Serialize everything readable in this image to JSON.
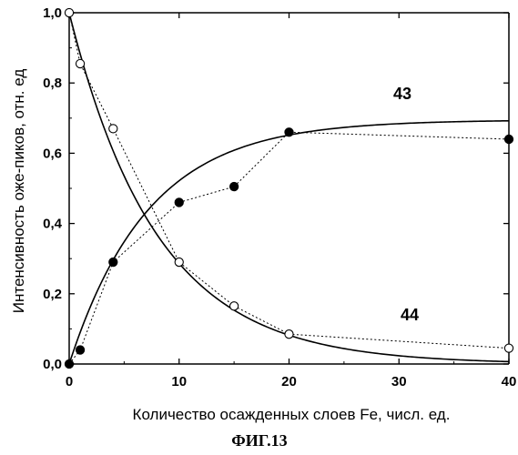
{
  "chart_data": {
    "type": "scatter",
    "xlabel": "Количество осажденных слоев Fe, числ. ед.",
    "ylabel": "Интенсивность оже-пиков, отн. ед",
    "xlim": [
      0,
      40
    ],
    "ylim": [
      0,
      1.0
    ],
    "x_ticks": [
      0,
      10,
      20,
      30,
      40
    ],
    "x_tick_labels": [
      "0",
      "10",
      "20",
      "30",
      "40"
    ],
    "y_ticks": [
      0,
      0.2,
      0.4,
      0.6,
      0.8,
      1.0
    ],
    "y_tick_labels": [
      "0,0",
      "0,2",
      "0,4",
      "0,6",
      "0,8",
      "1,0"
    ],
    "grid": false,
    "series": [
      {
        "name": "43",
        "marker": "filled-circle",
        "points": [
          [
            0,
            0.0
          ],
          [
            1,
            0.04
          ],
          [
            4,
            0.29
          ],
          [
            10,
            0.46
          ],
          [
            15,
            0.505
          ],
          [
            20,
            0.66
          ],
          [
            40,
            0.64
          ]
        ],
        "fit": {
          "form": "saturating-exponential",
          "amplitude": 0.695,
          "tau": 7.2
        }
      },
      {
        "name": "44",
        "marker": "open-circle",
        "points": [
          [
            0,
            1.0
          ],
          [
            1,
            0.855
          ],
          [
            4,
            0.67
          ],
          [
            10,
            0.29
          ],
          [
            15,
            0.165
          ],
          [
            20,
            0.085
          ],
          [
            40,
            0.045
          ]
        ],
        "fit": {
          "form": "decaying-exponential",
          "amplitude": 1.0,
          "tau": 8.0
        }
      }
    ],
    "caption": "ФИГ.13"
  }
}
